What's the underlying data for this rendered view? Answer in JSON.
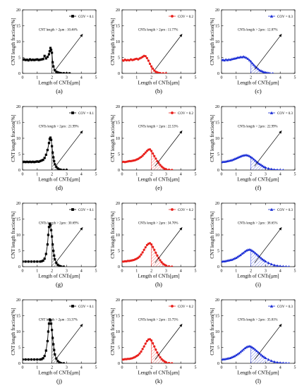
{
  "figure": {
    "background": "#ffffff",
    "common": {
      "xlabel": "Length of CNTs[μm]",
      "ylabel": "CNT length fraction[%]",
      "xlim": [
        0,
        5
      ],
      "ylim": [
        0,
        20
      ],
      "xticks": [
        0,
        1,
        2,
        3,
        4,
        5
      ],
      "yticks": [
        0,
        5,
        10,
        15,
        20
      ]
    }
  },
  "chart_data": [
    {
      "panel": "(a)",
      "type": "line",
      "color": "#000000",
      "marker": "square",
      "legend": "COV = 0.1",
      "legend_position": "top-right",
      "annotation": "CNT length > 2μm : 10.46%",
      "hatch_from": 2.0,
      "series": [
        {
          "name": "COV = 0.1",
          "x": [
            0.0,
            0.1,
            0.2,
            0.3,
            0.4,
            0.5,
            0.6,
            0.7,
            0.8,
            0.9,
            1.0,
            1.1,
            1.2,
            1.3,
            1.4,
            1.5,
            1.6,
            1.7,
            1.8,
            1.85,
            1.9,
            1.95,
            2.0,
            2.05,
            2.1,
            2.2,
            2.3,
            2.4,
            2.5,
            2.6,
            2.8,
            3.0,
            3.2
          ],
          "y": [
            4.3,
            4.4,
            4.2,
            4.3,
            4.1,
            4.4,
            4.2,
            4.3,
            4.2,
            4.3,
            4.4,
            4.2,
            4.3,
            4.4,
            4.5,
            5.5,
            4.7,
            5.2,
            6.0,
            7.0,
            8.0,
            7.4,
            6.5,
            3.5,
            2.2,
            1.0,
            0.5,
            0.3,
            0.15,
            0.1,
            0.05,
            0,
            0
          ]
        }
      ]
    },
    {
      "panel": "(b)",
      "type": "line",
      "color": "#e8201c",
      "marker": "circle",
      "legend": "COV = 0.2",
      "legend_position": "top-right",
      "annotation": "CNTs length > 2μm : 11.77%",
      "hatch_from": 2.0,
      "series": [
        {
          "name": "COV = 0.2",
          "x": [
            0.0,
            0.1,
            0.2,
            0.3,
            0.4,
            0.5,
            0.6,
            0.7,
            0.8,
            0.9,
            1.0,
            1.1,
            1.2,
            1.3,
            1.4,
            1.5,
            1.6,
            1.7,
            1.8,
            1.9,
            2.0,
            2.1,
            2.2,
            2.3,
            2.4,
            2.5,
            2.6,
            2.8,
            3.0
          ],
          "y": [
            4.2,
            4.0,
            4.3,
            4.1,
            4.2,
            4.1,
            4.4,
            4.2,
            4.3,
            4.5,
            4.6,
            4.4,
            4.7,
            4.9,
            5.2,
            5.5,
            5.4,
            4.8,
            4.0,
            3.0,
            2.2,
            1.5,
            0.9,
            0.5,
            0.3,
            0.15,
            0.08,
            0.02,
            0
          ]
        }
      ]
    },
    {
      "panel": "(c)",
      "type": "line",
      "color": "#1c2fd6",
      "marker": "triangle",
      "legend": "COV = 0.3",
      "legend_position": "top-right",
      "annotation": "CNTs length > 2μm : 12.87%",
      "hatch_from": 2.0,
      "series": [
        {
          "name": "COV = 0.3",
          "x": [
            0.0,
            0.1,
            0.2,
            0.3,
            0.4,
            0.5,
            0.6,
            0.7,
            0.8,
            0.9,
            1.0,
            1.1,
            1.2,
            1.3,
            1.4,
            1.5,
            1.6,
            1.7,
            1.8,
            1.9,
            2.0,
            2.1,
            2.2,
            2.3,
            2.4,
            2.5,
            2.6,
            2.7,
            2.8,
            2.9,
            3.0,
            3.1,
            3.2,
            3.3,
            3.5
          ],
          "y": [
            4.2,
            4.3,
            4.1,
            4.4,
            4.2,
            4.4,
            4.3,
            4.5,
            4.6,
            4.7,
            4.8,
            5.0,
            5.0,
            5.2,
            5.1,
            5.3,
            5.1,
            4.9,
            4.6,
            4.2,
            3.8,
            3.2,
            2.7,
            2.2,
            1.8,
            1.4,
            1.0,
            0.8,
            0.6,
            0.4,
            0.3,
            0.2,
            0.1,
            0.05,
            0
          ]
        }
      ]
    },
    {
      "panel": "(d)",
      "type": "line",
      "color": "#000000",
      "marker": "square",
      "legend": "COV = 0.1",
      "legend_position": "top-right",
      "annotation": "CNTs length > 2μm : 21.99%",
      "hatch_from": 2.0,
      "series": [
        {
          "name": "COV = 0.1",
          "x": [
            0.0,
            0.1,
            0.2,
            0.3,
            0.4,
            0.5,
            0.6,
            0.7,
            0.8,
            0.9,
            1.0,
            1.1,
            1.2,
            1.3,
            1.4,
            1.5,
            1.6,
            1.7,
            1.8,
            1.85,
            1.9,
            1.95,
            2.0,
            2.05,
            2.1,
            2.15,
            2.2,
            2.3,
            2.4,
            2.5,
            2.6,
            2.8,
            3.0
          ],
          "y": [
            2.5,
            2.6,
            2.5,
            2.6,
            2.5,
            2.6,
            2.5,
            2.6,
            2.5,
            2.6,
            2.7,
            2.6,
            2.8,
            3.0,
            3.2,
            3.8,
            4.8,
            6.3,
            8.5,
            9.8,
            10.2,
            9.5,
            7.5,
            5.5,
            4.0,
            2.8,
            1.8,
            1.0,
            0.5,
            0.2,
            0.1,
            0.02,
            0
          ]
        }
      ]
    },
    {
      "panel": "(e)",
      "type": "line",
      "color": "#e8201c",
      "marker": "circle",
      "legend": "COV = 0.2",
      "legend_position": "top-right",
      "annotation": "CNTs length > 2μm : 22.53%",
      "hatch_from": 2.0,
      "series": [
        {
          "name": "COV = 0.2",
          "x": [
            0.0,
            0.1,
            0.2,
            0.3,
            0.4,
            0.5,
            0.6,
            0.7,
            0.8,
            0.9,
            1.0,
            1.1,
            1.2,
            1.3,
            1.4,
            1.5,
            1.6,
            1.7,
            1.8,
            1.9,
            2.0,
            2.1,
            2.2,
            2.3,
            2.4,
            2.5,
            2.6,
            2.7,
            2.8,
            2.9,
            3.0,
            3.2,
            3.4
          ],
          "y": [
            2.5,
            2.6,
            2.5,
            2.6,
            2.7,
            2.8,
            2.8,
            2.9,
            3.0,
            3.1,
            3.3,
            3.5,
            3.8,
            4.1,
            4.5,
            5.0,
            5.5,
            6.0,
            6.4,
            6.5,
            6.0,
            5.2,
            4.4,
            3.6,
            2.8,
            2.2,
            1.6,
            1.1,
            0.7,
            0.4,
            0.25,
            0.08,
            0
          ]
        }
      ]
    },
    {
      "panel": "(f)",
      "type": "line",
      "color": "#1c2fd6",
      "marker": "triangle",
      "legend": "COV = 0.3",
      "legend_position": "top-right",
      "annotation": "CNTs length > 2μm : 22.99%",
      "hatch_from": 2.0,
      "series": [
        {
          "name": "COV = 0.3",
          "x": [
            0.0,
            0.1,
            0.2,
            0.3,
            0.4,
            0.5,
            0.6,
            0.7,
            0.8,
            0.9,
            1.0,
            1.1,
            1.2,
            1.3,
            1.4,
            1.5,
            1.6,
            1.7,
            1.8,
            1.9,
            2.0,
            2.1,
            2.2,
            2.3,
            2.4,
            2.5,
            2.6,
            2.7,
            2.8,
            2.9,
            3.0,
            3.2,
            3.4,
            3.6,
            3.8,
            4.0,
            4.2
          ],
          "y": [
            2.5,
            2.6,
            2.6,
            2.7,
            2.8,
            2.9,
            3.0,
            3.1,
            3.3,
            3.5,
            3.7,
            3.9,
            4.1,
            4.3,
            4.5,
            4.6,
            4.7,
            4.7,
            4.6,
            4.4,
            4.1,
            3.8,
            3.4,
            3.0,
            2.6,
            2.2,
            1.9,
            1.6,
            1.3,
            1.0,
            0.8,
            0.5,
            0.3,
            0.15,
            0.08,
            0.03,
            0
          ]
        }
      ]
    },
    {
      "panel": "(g)",
      "type": "line",
      "color": "#000000",
      "marker": "square",
      "legend": "COV = 0.1",
      "legend_position": "top-right",
      "annotation": "CNTs length > 2μm : 30.69%",
      "hatch_from": 2.0,
      "series": [
        {
          "name": "COV = 0.1",
          "x": [
            0.0,
            0.2,
            0.4,
            0.6,
            0.8,
            1.0,
            1.2,
            1.3,
            1.4,
            1.5,
            1.6,
            1.7,
            1.75,
            1.8,
            1.85,
            1.9,
            1.95,
            2.0,
            2.05,
            2.1,
            2.15,
            2.2,
            2.3,
            2.4,
            2.5,
            2.6,
            2.8
          ],
          "y": [
            1.6,
            1.6,
            1.6,
            1.6,
            1.6,
            1.6,
            1.6,
            1.7,
            1.9,
            2.5,
            4.0,
            7.0,
            10.0,
            12.5,
            13.5,
            13.0,
            11.5,
            9.5,
            7.0,
            5.0,
            3.5,
            2.3,
            1.2,
            0.6,
            0.25,
            0.1,
            0
          ]
        }
      ]
    },
    {
      "panel": "(h)",
      "type": "line",
      "color": "#e8201c",
      "marker": "circle",
      "legend": "COV = 0.2",
      "legend_position": "top-right",
      "annotation": "CNTs length > 2μm : 34.70%",
      "hatch_from": 2.0,
      "series": [
        {
          "name": "COV = 0.2",
          "x": [
            0.0,
            0.1,
            0.2,
            0.3,
            0.4,
            0.5,
            0.6,
            0.7,
            0.8,
            0.9,
            1.0,
            1.1,
            1.2,
            1.3,
            1.4,
            1.5,
            1.6,
            1.7,
            1.8,
            1.9,
            2.0,
            2.1,
            2.2,
            2.3,
            2.4,
            2.5,
            2.6,
            2.7,
            2.8,
            2.9,
            3.0,
            3.2,
            3.4
          ],
          "y": [
            1.6,
            1.6,
            1.7,
            1.7,
            1.8,
            1.8,
            1.9,
            2.0,
            2.1,
            2.3,
            2.5,
            2.8,
            3.2,
            3.8,
            4.5,
            5.3,
            6.1,
            6.8,
            7.2,
            7.4,
            7.0,
            6.2,
            5.3,
            4.4,
            3.5,
            2.7,
            2.0,
            1.4,
            0.9,
            0.6,
            0.35,
            0.1,
            0
          ]
        }
      ]
    },
    {
      "panel": "(i)",
      "type": "line",
      "color": "#1c2fd6",
      "marker": "triangle",
      "legend": "COV = 0.3",
      "legend_position": "top-right",
      "annotation": "CNTs length > 2μm : 38.65%",
      "hatch_from": 2.0,
      "series": [
        {
          "name": "COV = 0.3",
          "x": [
            0.0,
            0.1,
            0.2,
            0.3,
            0.4,
            0.5,
            0.6,
            0.7,
            0.8,
            0.9,
            1.0,
            1.1,
            1.2,
            1.3,
            1.4,
            1.5,
            1.6,
            1.7,
            1.8,
            1.9,
            2.0,
            2.1,
            2.2,
            2.3,
            2.4,
            2.5,
            2.6,
            2.7,
            2.8,
            2.9,
            3.0,
            3.2,
            3.4,
            3.6,
            3.8,
            4.0,
            4.2,
            4.4,
            4.6
          ],
          "y": [
            1.6,
            1.7,
            1.7,
            1.8,
            1.9,
            2.0,
            2.1,
            2.2,
            2.4,
            2.6,
            2.8,
            3.1,
            3.4,
            3.7,
            4.1,
            4.4,
            4.8,
            5.1,
            5.3,
            5.4,
            5.3,
            5.0,
            4.7,
            4.3,
            3.9,
            3.5,
            3.1,
            2.7,
            2.3,
            2.0,
            1.7,
            1.2,
            0.8,
            0.5,
            0.3,
            0.18,
            0.1,
            0.05,
            0
          ]
        }
      ]
    },
    {
      "panel": "(j)",
      "type": "line",
      "color": "#000000",
      "marker": "square",
      "legend": "COV = 0.1",
      "legend_position": "top-right",
      "annotation": "CNT length > 2μm : 33.37%",
      "hatch_from": 2.0,
      "series": [
        {
          "name": "COV = 0.1",
          "x": [
            0.0,
            0.2,
            0.4,
            0.6,
            0.8,
            1.0,
            1.2,
            1.3,
            1.4,
            1.5,
            1.6,
            1.7,
            1.75,
            1.8,
            1.85,
            1.9,
            1.95,
            2.0,
            2.05,
            2.1,
            2.15,
            2.2,
            2.3,
            2.4,
            2.5,
            2.6,
            2.8
          ],
          "y": [
            1.2,
            1.2,
            1.2,
            1.2,
            1.2,
            1.2,
            1.2,
            1.3,
            1.6,
            2.3,
            4.0,
            7.0,
            10.0,
            12.5,
            13.8,
            13.6,
            12.5,
            10.5,
            8.0,
            6.0,
            4.2,
            2.8,
            1.5,
            0.7,
            0.3,
            0.1,
            0
          ]
        }
      ]
    },
    {
      "panel": "(k)",
      "type": "line",
      "color": "#e8201c",
      "marker": "circle",
      "legend": "COV = 0.2",
      "legend_position": "top-right",
      "annotation": "CNTs length > 2μm : 33.75%",
      "hatch_from": 2.0,
      "series": [
        {
          "name": "COV = 0.2",
          "x": [
            0.0,
            0.1,
            0.2,
            0.3,
            0.4,
            0.5,
            0.6,
            0.7,
            0.8,
            0.9,
            1.0,
            1.1,
            1.2,
            1.3,
            1.4,
            1.5,
            1.6,
            1.7,
            1.8,
            1.9,
            2.0,
            2.1,
            2.2,
            2.3,
            2.4,
            2.5,
            2.6,
            2.7,
            2.8,
            2.9,
            3.0,
            3.2,
            3.4
          ],
          "y": [
            1.2,
            1.2,
            1.3,
            1.3,
            1.4,
            1.4,
            1.5,
            1.6,
            1.8,
            2.0,
            2.3,
            2.6,
            3.1,
            3.7,
            4.5,
            5.3,
            6.2,
            7.0,
            7.5,
            7.6,
            7.2,
            6.3,
            5.3,
            4.3,
            3.4,
            2.6,
            1.9,
            1.3,
            0.9,
            0.55,
            0.3,
            0.1,
            0
          ]
        }
      ]
    },
    {
      "panel": "(l)",
      "type": "line",
      "color": "#1c2fd6",
      "marker": "triangle",
      "legend": "COV = 0.3",
      "legend_position": "top-right",
      "annotation": "CNTs length > 2μm : 35.81%",
      "hatch_from": 2.0,
      "series": [
        {
          "name": "COV = 0.3",
          "x": [
            0.0,
            0.1,
            0.2,
            0.3,
            0.4,
            0.5,
            0.6,
            0.7,
            0.8,
            0.9,
            1.0,
            1.1,
            1.2,
            1.3,
            1.4,
            1.5,
            1.6,
            1.7,
            1.8,
            1.9,
            2.0,
            2.1,
            2.2,
            2.3,
            2.4,
            2.5,
            2.6,
            2.7,
            2.8,
            2.9,
            3.0,
            3.2,
            3.4,
            3.6,
            3.8,
            4.0,
            4.2,
            4.4,
            4.6
          ],
          "y": [
            1.2,
            1.3,
            1.3,
            1.4,
            1.5,
            1.6,
            1.7,
            1.9,
            2.1,
            2.3,
            2.6,
            2.9,
            3.2,
            3.6,
            4.0,
            4.4,
            4.8,
            5.1,
            5.3,
            5.4,
            5.3,
            5.0,
            4.7,
            4.3,
            3.9,
            3.5,
            3.1,
            2.7,
            2.3,
            2.0,
            1.7,
            1.2,
            0.8,
            0.5,
            0.3,
            0.18,
            0.1,
            0.05,
            0
          ]
        }
      ]
    }
  ]
}
